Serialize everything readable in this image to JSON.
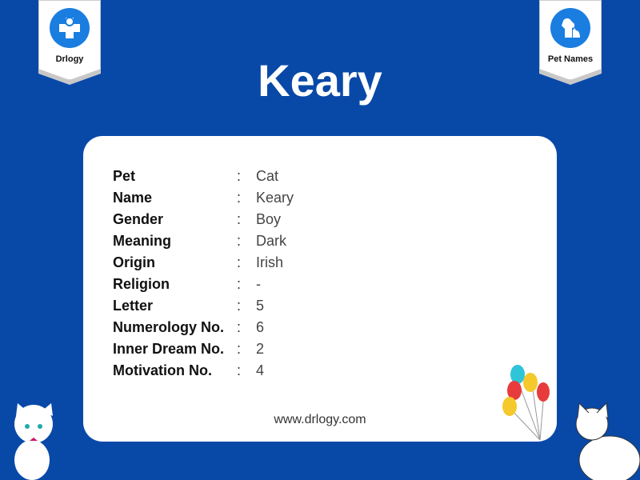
{
  "badges": {
    "left": "Drlogy",
    "right": "Pet Names"
  },
  "title": "Keary",
  "rows": [
    {
      "k": "Pet",
      "v": "Cat"
    },
    {
      "k": "Name",
      "v": "Keary"
    },
    {
      "k": "Gender",
      "v": "Boy"
    },
    {
      "k": "Meaning",
      "v": "Dark"
    },
    {
      "k": "Origin",
      "v": "Irish"
    },
    {
      "k": "Religion",
      "v": "-"
    },
    {
      "k": "Letter",
      "v": "5"
    },
    {
      "k": "Numerology No.",
      "v": "6"
    },
    {
      "k": "Inner Dream No.",
      "v": "2"
    },
    {
      "k": "Motivation No.",
      "v": "4"
    }
  ],
  "colon": ":",
  "website": "www.drlogy.com",
  "colors": {
    "background": "#0849a8",
    "icon": "#1a7de0"
  }
}
